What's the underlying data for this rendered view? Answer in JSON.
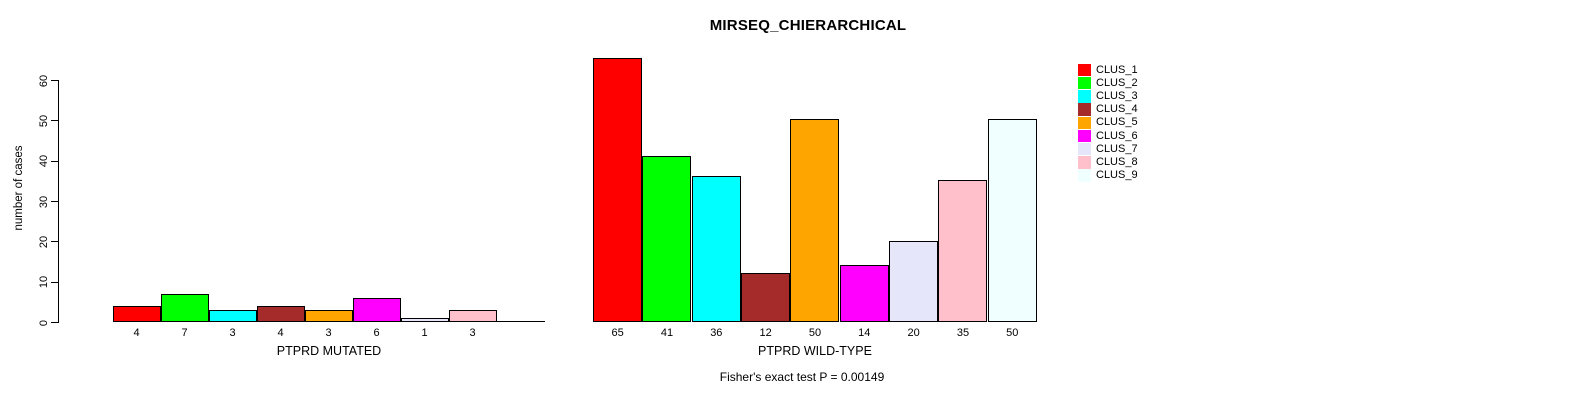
{
  "title": "MIRSEQ_CHIERARCHICAL",
  "footer": {
    "fisher_text": "Fisher's exact test P = 0.00149"
  },
  "legend": {
    "items": [
      {
        "label": "CLUS_1",
        "color": "#FF0000"
      },
      {
        "label": "CLUS_2",
        "color": "#00FF00"
      },
      {
        "label": "CLUS_3",
        "color": "#00FFFF"
      },
      {
        "label": "CLUS_4",
        "color": "#A52A2A"
      },
      {
        "label": "CLUS_5",
        "color": "#FFA500"
      },
      {
        "label": "CLUS_6",
        "color": "#FF00FF"
      },
      {
        "label": "CLUS_7",
        "color": "#E6E6FA"
      },
      {
        "label": "CLUS_8",
        "color": "#FFC0CB"
      },
      {
        "label": "CLUS_9",
        "color": "#F0FFFF"
      }
    ]
  },
  "chart_data": [
    {
      "type": "bar",
      "panel": "left",
      "title": "MIRSEQ_CHIERARCHICAL",
      "xlabel": "PTPRD MUTATED",
      "ylabel": "number of cases",
      "categories": [
        "CLUS_1",
        "CLUS_2",
        "CLUS_3",
        "CLUS_4",
        "CLUS_5",
        "CLUS_6",
        "CLUS_7",
        "CLUS_8",
        "CLUS_9"
      ],
      "values": [
        4,
        7,
        3,
        4,
        3,
        6,
        1,
        3,
        0
      ],
      "bar_labels": [
        "4",
        "7",
        "3",
        "4",
        "3",
        "6",
        "1",
        "3",
        ""
      ],
      "colors": [
        "#FF0000",
        "#00FF00",
        "#00FFFF",
        "#A52A2A",
        "#FFA500",
        "#FF00FF",
        "#E6E6FA",
        "#FFC0CB",
        "#F0FFFF"
      ],
      "ylim": [
        0,
        65
      ],
      "yticks": [
        0,
        10,
        20,
        30,
        40,
        50,
        60
      ],
      "y_axis_visible": true,
      "grid": false,
      "legend_position": "right-outside"
    },
    {
      "type": "bar",
      "panel": "right",
      "title": "",
      "xlabel": "PTPRD WILD-TYPE",
      "ylabel": "",
      "categories": [
        "CLUS_1",
        "CLUS_2",
        "CLUS_3",
        "CLUS_4",
        "CLUS_5",
        "CLUS_6",
        "CLUS_7",
        "CLUS_8",
        "CLUS_9"
      ],
      "values": [
        65,
        41,
        36,
        12,
        50,
        14,
        20,
        35,
        50
      ],
      "bar_labels": [
        "65",
        "41",
        "36",
        "12",
        "50",
        "14",
        "20",
        "35",
        "50"
      ],
      "colors": [
        "#FF0000",
        "#00FF00",
        "#00FFFF",
        "#A52A2A",
        "#FFA500",
        "#FF00FF",
        "#E6E6FA",
        "#FFC0CB",
        "#F0FFFF"
      ],
      "ylim": [
        0,
        65
      ],
      "yticks": [],
      "y_axis_visible": false,
      "grid": false
    }
  ]
}
